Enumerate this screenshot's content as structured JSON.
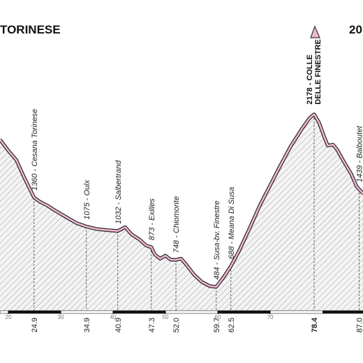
{
  "chart_data": {
    "type": "area",
    "title": "TORINESE",
    "subtitle": "20",
    "x": [
      18.4,
      20,
      21.5,
      23,
      24.9,
      26,
      27.5,
      29,
      31,
      33,
      34.9,
      37,
      39,
      40.9,
      42.3,
      43.5,
      45,
      46.3,
      47.3,
      48,
      49,
      50,
      51,
      52,
      53,
      54,
      55.5,
      57,
      58.5,
      59.7,
      61,
      62.5,
      64,
      66,
      68,
      70,
      72,
      74,
      76,
      77.5,
      78.4,
      79.3,
      80.3,
      81,
      82,
      82.8,
      84,
      85.5,
      86.5,
      87.73
    ],
    "values": [
      1930,
      1820,
      1730,
      1560,
      1360,
      1320,
      1280,
      1230,
      1170,
      1110,
      1075,
      1050,
      1040,
      1032,
      1070,
      1000,
      950,
      890,
      873,
      800,
      760,
      790,
      750,
      748,
      760,
      700,
      600,
      530,
      490,
      484,
      570,
      688,
      830,
      1050,
      1280,
      1480,
      1680,
      1870,
      2030,
      2140,
      2178,
      2100,
      1960,
      1870,
      1880,
      1830,
      1720,
      1590,
      1470,
      1400
    ],
    "color": "#f2b6d2",
    "xlim": [
      18.4,
      87.73
    ],
    "ylim": [
      250,
      3300
    ],
    "xticks": [
      20,
      30,
      40,
      50,
      60,
      70
    ],
    "waypoints": [
      {
        "km": 24.9,
        "label": "1360 - Cesana Torinese"
      },
      {
        "km": 34.9,
        "label": "1075 - Oulx"
      },
      {
        "km": 40.9,
        "label": "1032 - Salbertrand"
      },
      {
        "km": 47.3,
        "label": "873 - Exilles"
      },
      {
        "km": {
          "value": 52,
          "label": "52.0"
        },
        "label": "748 - Chiomonte"
      },
      {
        "km": 59.7,
        "label": "484 - Susa-bv. Finestre"
      },
      {
        "km": 62.5,
        "label": "688 - Meana Di Susa"
      },
      {
        "km": 78.4,
        "label": "2178 - COLLE",
        "label2": "DELLE FINESTRE",
        "summit": true
      },
      {
        "km": {
          "value": 87,
          "label": "87.0"
        },
        "label": "1439 - Balboutet"
      }
    ]
  }
}
